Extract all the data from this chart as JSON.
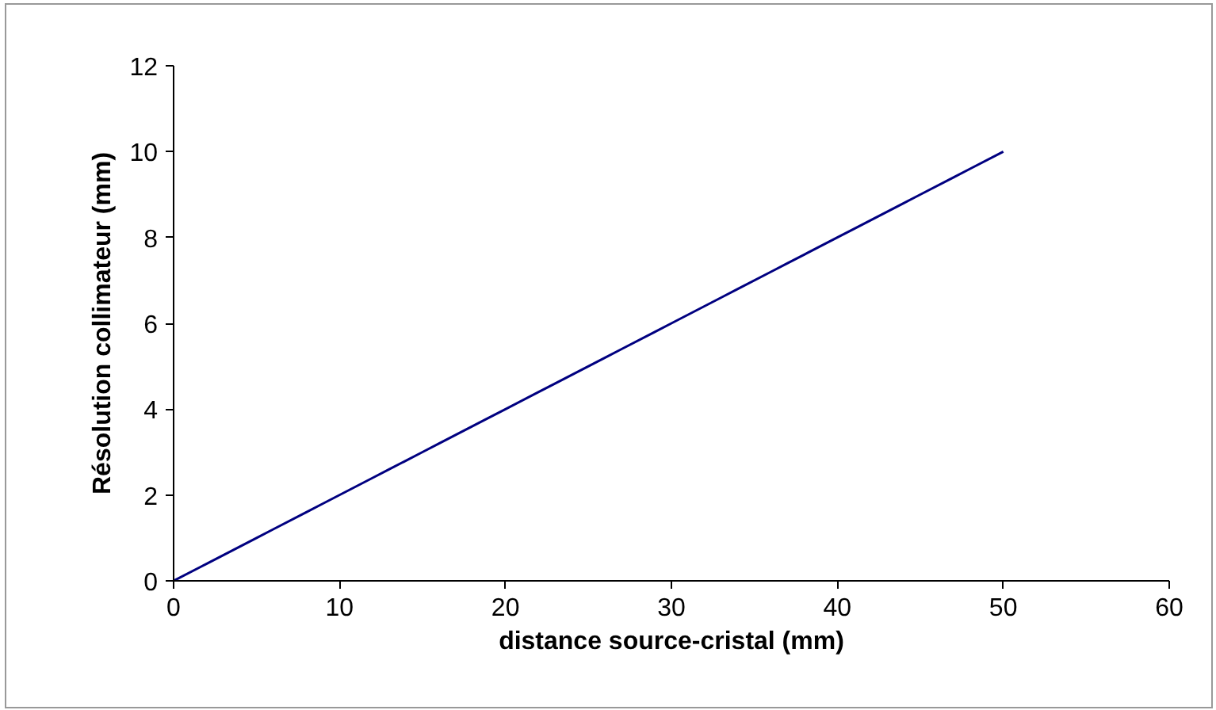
{
  "chart_data": {
    "type": "line",
    "xlabel": "distance source-cristal (mm)",
    "ylabel": "Résolution collimateur (mm)",
    "x": [
      0,
      2,
      5,
      6,
      8,
      9,
      12,
      13,
      15,
      16,
      19,
      20,
      22,
      23,
      26,
      27,
      29,
      30,
      33,
      34,
      36,
      37,
      38,
      40,
      41,
      44,
      45,
      47,
      48,
      50
    ],
    "series": [
      {
        "color": "#000080",
        "values": [
          0,
          0.4,
          1.0,
          1.2,
          1.6,
          1.8,
          2.4,
          2.6,
          3.0,
          3.2,
          3.8,
          4.0,
          4.4,
          4.6,
          5.2,
          5.4,
          5.8,
          6.0,
          6.6,
          6.8,
          7.2,
          7.4,
          7.6,
          8.0,
          8.2,
          8.8,
          9.0,
          9.4,
          9.6,
          10.0
        ]
      }
    ],
    "xlim": [
      0,
      60
    ],
    "xticks": [
      0,
      10,
      20,
      30,
      40,
      50,
      60
    ],
    "ylim": [
      0,
      12
    ],
    "yticks": [
      0,
      2,
      4,
      6,
      8,
      10,
      12
    ],
    "grid": false,
    "marker": "none",
    "line_style": "solid"
  }
}
